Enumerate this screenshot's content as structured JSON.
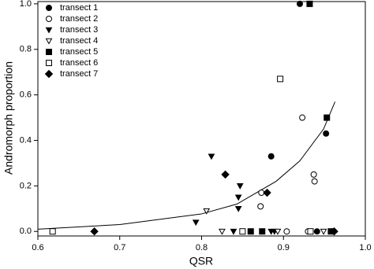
{
  "chart_data": {
    "type": "scatter",
    "xlabel": "QSR",
    "ylabel": "Andromorph proportion",
    "xlim": [
      0.6,
      1.0
    ],
    "ylim": [
      -0.02,
      1.01
    ],
    "xticks": [
      0.6,
      0.7,
      0.8,
      0.9,
      {
        "value": 1.0,
        "label": "1.0"
      }
    ],
    "yticks": [
      {
        "value": 0.0,
        "label": "0.0"
      },
      0.2,
      0.4,
      0.6,
      0.8,
      {
        "value": 1.0,
        "label": "1.0"
      }
    ],
    "legend": "upper left",
    "series": [
      {
        "name": "transect 1",
        "marker": "circle",
        "filled": true,
        "color": "#000000",
        "x": [
          0.92,
          0.885,
          0.952,
          0.941,
          0.961
        ],
        "values": [
          1.0,
          0.33,
          0.43,
          0.0,
          0.0
        ]
      },
      {
        "name": "transect 2",
        "marker": "circle",
        "filled": false,
        "color": "#000000",
        "x": [
          0.923,
          0.873,
          0.872,
          0.937,
          0.938,
          0.93,
          0.904
        ],
        "values": [
          0.5,
          0.17,
          0.11,
          0.25,
          0.22,
          0.0,
          0.0
        ]
      },
      {
        "name": "transect 3",
        "marker": "triangle-down",
        "filled": true,
        "color": "#000000",
        "x": [
          0.812,
          0.847,
          0.845,
          0.845,
          0.793,
          0.839,
          0.885,
          0.889
        ],
        "values": [
          0.33,
          0.2,
          0.15,
          0.1,
          0.04,
          0.0,
          0.0,
          0.0
        ]
      },
      {
        "name": "transect 4",
        "marker": "triangle-down",
        "filled": false,
        "color": "#000000",
        "x": [
          0.806,
          0.825,
          0.893,
          0.949
        ],
        "values": [
          0.09,
          0.0,
          0.0,
          0.0
        ]
      },
      {
        "name": "transect 5",
        "marker": "square",
        "filled": true,
        "color": "#000000",
        "x": [
          0.932,
          0.953,
          0.86,
          0.874,
          0.958
        ],
        "values": [
          1.0,
          0.5,
          0.0,
          0.0,
          0.0
        ]
      },
      {
        "name": "transect 6",
        "marker": "square",
        "filled": false,
        "color": "#000000",
        "x": [
          0.896,
          0.618,
          0.85,
          0.933
        ],
        "values": [
          0.67,
          0.0,
          0.0,
          0.0
        ]
      },
      {
        "name": "transect 7",
        "marker": "diamond",
        "filled": true,
        "color": "#000000",
        "x": [
          0.669,
          0.829,
          0.88,
          0.962
        ],
        "values": [
          0.0,
          0.25,
          0.17,
          0.0
        ]
      }
    ],
    "curve": {
      "color": "#000000",
      "x": [
        0.6,
        0.7,
        0.8,
        0.843,
        0.891,
        0.92,
        0.949,
        0.963
      ],
      "values": [
        0.01,
        0.03,
        0.077,
        0.12,
        0.22,
        0.31,
        0.45,
        0.57
      ]
    }
  }
}
